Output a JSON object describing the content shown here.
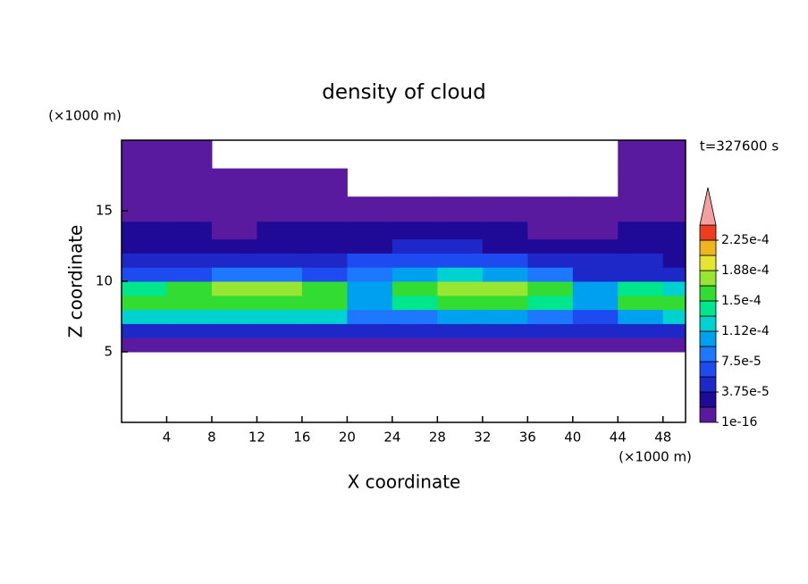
{
  "chart_data": {
    "type": "contour",
    "title": "density of cloud",
    "xlabel": "X coordinate",
    "ylabel": "Z coordinate",
    "x_unit": "(×1000 m)",
    "y_unit": "(×1000 m)",
    "annotation": "t=327600 s",
    "xlim": [
      0,
      50
    ],
    "ylim": [
      0,
      20
    ],
    "xticks": [
      4,
      8,
      12,
      16,
      20,
      24,
      28,
      32,
      36,
      40,
      44,
      48
    ],
    "yticks": [
      5,
      10,
      15
    ],
    "x": [
      2,
      6,
      10,
      14,
      18,
      22,
      26,
      30,
      34,
      38,
      42,
      46,
      50
    ],
    "y": [
      5.5,
      6.5,
      7.5,
      8.5,
      9.5,
      10.5,
      11.5,
      12.5,
      13.5,
      15,
      17,
      19
    ],
    "z": [
      [
        1e-05,
        1e-05,
        1e-05,
        1e-05,
        1e-05,
        1e-05,
        1e-05,
        1e-05,
        1e-05,
        1e-05,
        1e-05,
        1e-05,
        1e-05
      ],
      [
        5e-05,
        5e-05,
        5.5e-05,
        5.5e-05,
        5e-05,
        4.5e-05,
        5e-05,
        5e-05,
        5.5e-05,
        5e-05,
        4.5e-05,
        5e-05,
        5e-05
      ],
      [
        0.00012,
        0.000125,
        0.00013,
        0.00013,
        0.00012,
        8e-05,
        9e-05,
        0.0001,
        0.00011,
        9e-05,
        7e-05,
        0.00011,
        0.000115
      ],
      [
        0.00015,
        0.00016,
        0.000165,
        0.000165,
        0.000155,
        0.000105,
        0.00014,
        0.00015,
        0.00016,
        0.00014,
        0.0001,
        0.000155,
        0.00015
      ],
      [
        0.00014,
        0.000165,
        0.00017,
        0.000175,
        0.00016,
        0.0001,
        0.00015,
        0.00017,
        0.00018,
        0.00016,
        0.00011,
        0.000145,
        0.00012
      ],
      [
        6e-05,
        7e-05,
        7.5e-05,
        8e-05,
        7e-05,
        9e-05,
        0.00011,
        0.000115,
        0.00011,
        8e-05,
        5e-05,
        5.5e-05,
        5e-05
      ],
      [
        4e-05,
        4e-05,
        4.5e-05,
        4e-05,
        4.5e-05,
        6e-05,
        7e-05,
        7e-05,
        6e-05,
        5e-05,
        4e-05,
        4e-05,
        3.5e-05
      ],
      [
        3e-05,
        3e-05,
        3e-05,
        2.5e-05,
        3e-05,
        3.5e-05,
        4e-05,
        4e-05,
        3.5e-05,
        3e-05,
        2.5e-05,
        2.5e-05,
        2.5e-05
      ],
      [
        2e-05,
        2e-05,
        1.5e-05,
        2e-05,
        2e-05,
        2e-05,
        2e-05,
        2e-05,
        2e-05,
        1.5e-05,
        1.5e-05,
        2e-05,
        2e-05
      ],
      [
        5e-06,
        5e-06,
        5e-06,
        5e-06,
        5e-06,
        5e-06,
        5e-06,
        5e-06,
        5e-06,
        5e-06,
        5e-06,
        5e-06,
        5e-06
      ],
      [
        5e-06,
        5e-06,
        5e-06,
        5e-06,
        5e-06,
        null,
        null,
        null,
        null,
        null,
        null,
        5e-06,
        5e-06
      ],
      [
        5e-06,
        5e-06,
        null,
        null,
        null,
        null,
        null,
        null,
        null,
        null,
        null,
        5e-06,
        5e-06
      ]
    ],
    "levels": [
      1e-16,
      1.875e-05,
      3.75e-05,
      5.625e-05,
      7.5e-05,
      9.375e-05,
      0.000112,
      0.00013125,
      0.00015,
      0.00016875,
      0.000188,
      0.00020625,
      0.000225
    ],
    "colors": [
      "#5a1aa0",
      "#1e0a96",
      "#1e28c8",
      "#1e4bf0",
      "#1e78ff",
      "#00a0f0",
      "#00d2d2",
      "#00e68c",
      "#32dc32",
      "#96e632",
      "#e6e632",
      "#f0b41e",
      "#f03c1e"
    ],
    "over_color": "#f4a0a0",
    "colorbar_ticks": [
      {
        "value": 1e-16,
        "label": "1e-16"
      },
      {
        "value": 3.75e-05,
        "label": "3.75e-5"
      },
      {
        "value": 7.5e-05,
        "label": "7.5e-5"
      },
      {
        "value": 0.000112,
        "label": "1.12e-4"
      },
      {
        "value": 0.00015,
        "label": "1.5e-4"
      },
      {
        "value": 0.000188,
        "label": "1.88e-4"
      },
      {
        "value": 0.000225,
        "label": "2.25e-4"
      }
    ]
  }
}
